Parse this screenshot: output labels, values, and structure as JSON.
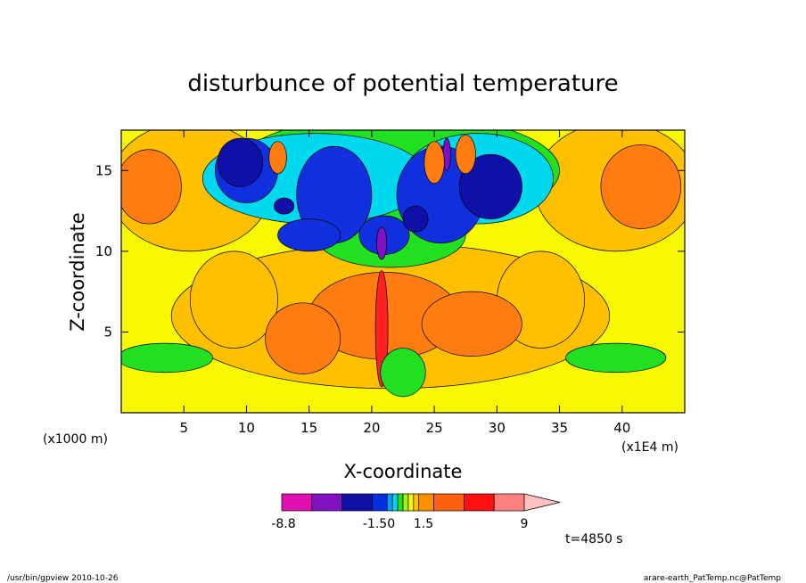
{
  "chart_data": {
    "type": "heatmap",
    "title": "disturbunce of potential temperature",
    "xlabel": "X-coordinate",
    "ylabel": "Z-coordinate",
    "x_unit_note": "(x1E4 m)",
    "y_unit_note": "(x1000 m)",
    "xlim": [
      0,
      45
    ],
    "ylim": [
      0,
      17.5
    ],
    "x_ticks": [
      5,
      10,
      15,
      20,
      25,
      30,
      35,
      40
    ],
    "y_ticks": [
      5,
      10,
      15
    ],
    "time_label": "t=4850 s",
    "colorbar": {
      "colors": [
        "#e010b0",
        "#8010c0",
        "#1010a8",
        "#0030e0",
        "#00a0ff",
        "#00d8f0",
        "#20e020",
        "#a0f020",
        "#f8f800",
        "#ffc000",
        "#ff9000",
        "#ff6010",
        "#ff1010",
        "#ff8080",
        "#ffc0c0"
      ],
      "tick_labels": [
        "-8.8",
        "-1.50",
        "1.5",
        "9"
      ],
      "extend_max": true
    },
    "field_colors": {
      "background": "#f8f800",
      "warm_1": "#ffc000",
      "warm_2": "#ff7d10",
      "warm_3": "#ff2020",
      "cool_1": "#20e020",
      "cool_2": "#00d8f0",
      "cool_3": "#1030e0",
      "cool_4": "#1010a8",
      "cool_5": "#8010c0"
    }
  },
  "footer": {
    "left": "/usr/bin/gpview   2010-10-26",
    "right": "arare-earth_PatTemp.nc@PatTemp"
  }
}
